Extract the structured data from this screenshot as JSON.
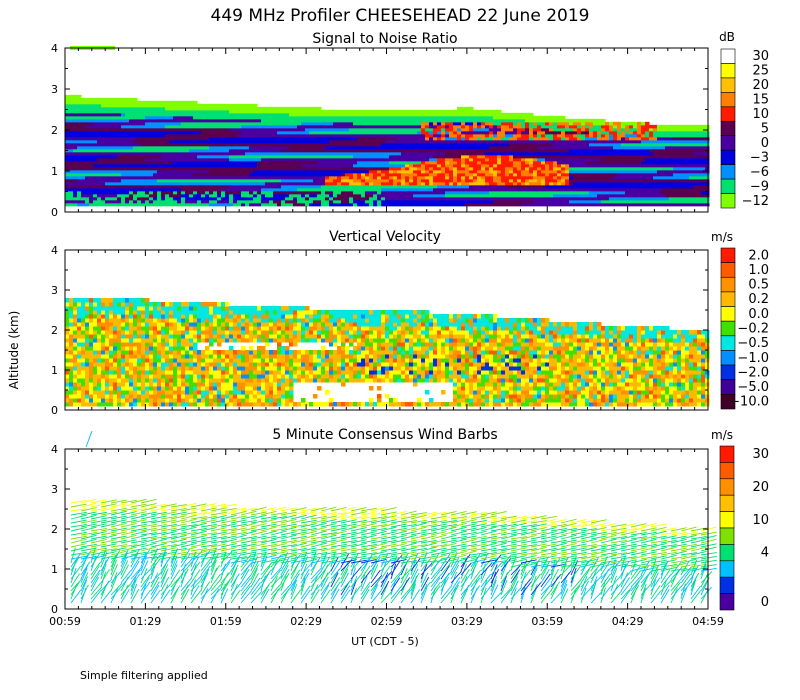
{
  "title": "449 MHz Profiler CHEESEHEAD 22 June 2019",
  "footer_note": "Simple filtering applied",
  "axes": {
    "ylabel": "Altitude (km)",
    "xlabel": "UT  (CDT - 5)",
    "ytick_labels": [
      "0",
      "1",
      "2",
      "3",
      "4"
    ],
    "ylim": [
      0,
      4
    ],
    "xtick_labels": [
      "00:59",
      "01:29",
      "01:59",
      "02:29",
      "02:59",
      "03:29",
      "03:59",
      "04:29",
      "04:59"
    ]
  },
  "panels": [
    {
      "title": "Signal to Noise Ratio",
      "unit": "dB",
      "colorbar_labels": [
        "30",
        "25",
        "20",
        "15",
        "10",
        "5",
        "0",
        "−3",
        "−6",
        "−9",
        "−12"
      ],
      "colorbar_colors": [
        "#ffffff",
        "#ffff00",
        "#ffc000",
        "#ff8000",
        "#ff1a00",
        "#5a0050",
        "#4a00a0",
        "#0000e0",
        "#0090ff",
        "#00e070",
        "#80ff00"
      ]
    },
    {
      "title": "Vertical Velocity",
      "unit": "m/s",
      "colorbar_labels": [
        "2.0",
        "1.0",
        "0.5",
        "0.2",
        "0.0",
        "−0.2",
        "−0.5",
        "−1.0",
        "−2.0",
        "−5.0",
        "−10.0"
      ],
      "colorbar_colors": [
        "#ff1a00",
        "#ff5a00",
        "#ff9000",
        "#ffb800",
        "#ffff00",
        "#40e000",
        "#00e8e0",
        "#0090ff",
        "#0030e0",
        "#40009a",
        "#40002a"
      ]
    },
    {
      "title": "5 Minute Consensus Wind Barbs",
      "unit": "m/s",
      "colorbar_labels": [
        "30",
        "20",
        "10",
        "4",
        "0"
      ],
      "colorbar_colors": [
        "#ff1a00",
        "#ff5a00",
        "#ff9000",
        "#ffc000",
        "#ffff00",
        "#80e000",
        "#00e070",
        "#00c0ff",
        "#0030e0",
        "#4a00a0"
      ]
    }
  ],
  "chart_data": [
    {
      "type": "heatmap",
      "title": "Signal to Noise Ratio",
      "units": "dB",
      "x_range": [
        "00:59",
        "04:59"
      ],
      "ylim": [
        0,
        4
      ],
      "colorbar_levels": [
        30,
        25,
        20,
        15,
        10,
        5,
        0,
        -3,
        -6,
        -9,
        -12
      ],
      "data_top_km": {
        "times": [
          "00:59",
          "01:29",
          "01:59",
          "02:29",
          "02:59",
          "03:29",
          "03:59",
          "04:29",
          "04:59"
        ],
        "values": [
          2.8,
          2.7,
          2.6,
          2.5,
          2.45,
          2.5,
          2.3,
          2.15,
          2.05
        ]
      },
      "annotations": [
        {
          "feature": "high SNR layer (10-25 dB)",
          "time_range": [
            "02:29",
            "03:59"
          ],
          "altitude_km": [
            0.5,
            1.2
          ]
        },
        {
          "feature": "high SNR layer (10-20 dB)",
          "time_range": [
            "03:19",
            "04:29"
          ],
          "altitude_km": [
            1.6,
            2.3
          ]
        }
      ]
    },
    {
      "type": "heatmap",
      "title": "Vertical Velocity",
      "units": "m/s",
      "x_range": [
        "00:59",
        "04:59"
      ],
      "ylim": [
        0,
        4
      ],
      "colorbar_levels": [
        2.0,
        1.0,
        0.5,
        0.2,
        0.0,
        -0.2,
        -0.5,
        -1.0,
        -2.0,
        -5.0,
        -10.0
      ],
      "data_top_km": {
        "times": [
          "00:59",
          "01:29",
          "01:59",
          "02:29",
          "02:59",
          "03:29",
          "03:59",
          "04:29",
          "04:59"
        ],
        "values": [
          2.8,
          2.7,
          2.6,
          2.5,
          2.45,
          2.35,
          2.2,
          2.05,
          1.95
        ]
      }
    },
    {
      "type": "scatter",
      "subtype": "wind_barbs",
      "title": "5 Minute Consensus Wind Barbs",
      "units": "m/s",
      "x_range": [
        "00:59",
        "04:59"
      ],
      "ylim": [
        0,
        4
      ],
      "colorbar_levels": [
        30,
        20,
        10,
        4,
        0
      ],
      "data_top_km": {
        "times": [
          "00:59",
          "01:29",
          "01:59",
          "02:29",
          "02:59",
          "03:29",
          "03:59",
          "04:29",
          "04:59"
        ],
        "values": [
          2.7,
          2.65,
          2.55,
          2.5,
          2.45,
          2.4,
          2.25,
          2.1,
          1.95
        ]
      }
    }
  ]
}
